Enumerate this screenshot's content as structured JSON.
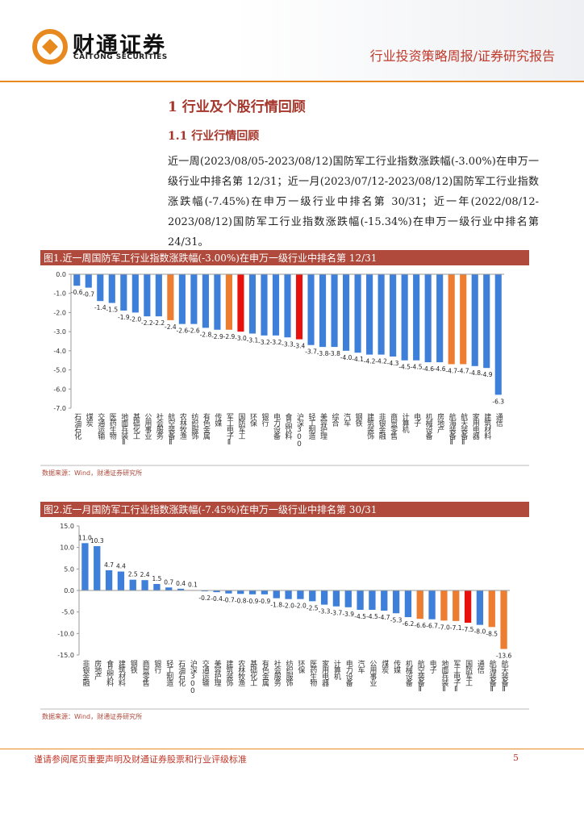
{
  "header": {
    "logo": "财通证券",
    "logo_en": "CAITONG SECURITIES",
    "report_type": "行业投资策略周报/证券研究报告"
  },
  "section": {
    "title": "1 行业及个股行情回顾",
    "subtitle": "1.1 行业行情回顾",
    "paragraph": "近一周(2023/08/05-2023/08/12)国防军工行业指数涨跌幅(-3.00%)在申万一级行业中排名第 12/31；近一月(2023/07/12-2023/08/12)国防军工行业指数涨跌幅(-7.45%)在申万一级行业中排名第 30/31；近一年(2022/08/12-2023/08/12)国防军工行业指数涨跌幅(-15.34%)在申万一级行业中排名第 24/31。"
  },
  "chart_data": [
    {
      "type": "bar",
      "title": "图1.近一周国防军工行业指数涨跌幅(-3.00%)在申万一级行业中排名第 12/31",
      "source": "数据来源：Wind，财通证券研究所",
      "categories": [
        "石油石化",
        "煤炭",
        "交通运输",
        "医药生物",
        "地面兵装Ⅱ",
        "基础化工",
        "公用事业",
        "社会服务",
        "航空装备Ⅱ",
        "农林牧渔",
        "纺织服饰",
        "有色金属",
        "传媒",
        "军工电子Ⅱ",
        "国防军工",
        "环保",
        "银行",
        "电力设备",
        "食品饮料",
        "沪深300",
        "轻工制造",
        "美容护理",
        "综合",
        "汽车",
        "钢铁",
        "建筑装饰",
        "非银金融",
        "商贸零售",
        "计算机",
        "电子",
        "机械设备",
        "房地产",
        "航海装备Ⅱ",
        "航天装备Ⅱ",
        "家用电器",
        "建筑材料",
        "通信"
      ],
      "values": [
        -0.6,
        -0.7,
        -1.4,
        -1.5,
        -1.9,
        -2.0,
        -2.2,
        -2.2,
        -2.4,
        -2.6,
        -2.6,
        -2.8,
        -2.9,
        -2.9,
        -3.0,
        -3.1,
        -3.2,
        -3.2,
        -3.3,
        -3.4,
        -3.7,
        -3.8,
        -3.8,
        -4.0,
        -4.1,
        -4.2,
        -4.2,
        -4.3,
        -4.5,
        -4.5,
        -4.6,
        -4.6,
        -4.7,
        -4.7,
        -4.8,
        -4.9,
        -6.3
      ],
      "value_labels": [
        "-0.6",
        "-0.7",
        "-1.4",
        "-1.5",
        "-1.9",
        "-2.0",
        "-2.2",
        "-2.2",
        "-2.4",
        "-2.6",
        "-2.6",
        "-2.8",
        "-2.9",
        "-2.9",
        "-3.0",
        "-3.1",
        "-3.2",
        "-3.2",
        "-3.3",
        "-3.4",
        "-3.7",
        "-3.8",
        "-3.8",
        "-4.0",
        "-4.1",
        "-4.2",
        "-4.2",
        "-4.3",
        "-4.5",
        "-4.5",
        "-4.6",
        "-4.6",
        "-4.7",
        "-4.7",
        "-4.8",
        "-4.9",
        "-6.3"
      ],
      "colors": [
        "#3d7fd9",
        "#3d7fd9",
        "#3d7fd9",
        "#3d7fd9",
        "#3d7fd9",
        "#3d7fd9",
        "#3d7fd9",
        "#3d7fd9",
        "#ed7d31",
        "#3d7fd9",
        "#3d7fd9",
        "#3d7fd9",
        "#3d7fd9",
        "#ed7d31",
        "#e8120c",
        "#3d7fd9",
        "#3d7fd9",
        "#3d7fd9",
        "#3d7fd9",
        "#e8120c",
        "#3d7fd9",
        "#3d7fd9",
        "#3d7fd9",
        "#3d7fd9",
        "#3d7fd9",
        "#3d7fd9",
        "#3d7fd9",
        "#3d7fd9",
        "#3d7fd9",
        "#3d7fd9",
        "#3d7fd9",
        "#3d7fd9",
        "#ed7d31",
        "#ed7d31",
        "#3d7fd9",
        "#3d7fd9",
        "#3d7fd9"
      ],
      "ylim": [
        -7,
        0
      ],
      "yticks": [
        {
          "value": -7,
          "label": "-7.0"
        },
        {
          "value": -6,
          "label": "-6.0"
        },
        {
          "value": -5,
          "label": "-5.0"
        },
        {
          "value": -4,
          "label": "-4.0"
        },
        {
          "value": -3,
          "label": "-3.0"
        },
        {
          "value": -2,
          "label": "-2.0"
        },
        {
          "value": -1,
          "label": "-1.0"
        },
        {
          "value": 0,
          "label": "0.0"
        }
      ]
    },
    {
      "type": "bar",
      "title": "图2.近一月国防军工行业指数涨跌幅(-7.45%)在申万一级行业中排名第 30/31",
      "source": "数据来源：Wind，财通证券研究所",
      "categories": [
        "非银金融",
        "房地产",
        "食品饮料",
        "建筑材料",
        "钢铁",
        "商贸零售",
        "银行",
        "轻工制造",
        "石油石化",
        "沪深300",
        "交通运输",
        "美容护理",
        "建筑装饰",
        "农林牧渔",
        "基础化工",
        "有色金属",
        "社会服务",
        "纺织服饰",
        "环保",
        "医药生物",
        "家用电器",
        "计算机",
        "电力设备",
        "汽车",
        "公用事业",
        "煤炭",
        "传媒",
        "机械设备",
        "航空装备Ⅱ",
        "电子",
        "地面兵装Ⅱ",
        "军工电子Ⅱ",
        "国防军工",
        "通信",
        "航海装备Ⅱ",
        "航天装备Ⅱ"
      ],
      "values": [
        11.0,
        10.3,
        4.7,
        4.4,
        2.5,
        2.4,
        1.5,
        0.7,
        0.4,
        0.1,
        -0.2,
        -0.4,
        -0.7,
        -0.8,
        -0.9,
        -0.9,
        -1.8,
        -2.0,
        -2.0,
        -2.5,
        -3.3,
        -3.7,
        -3.9,
        -4.5,
        -4.5,
        -4.7,
        -5.3,
        -6.2,
        -6.6,
        -6.7,
        -7.0,
        -7.1,
        -7.5,
        -8.0,
        -8.5,
        -13.6
      ],
      "value_labels": [
        "11.0",
        "10.3",
        "4.7",
        "4.4",
        "2.5",
        "2.4",
        "1.5",
        "0.7",
        "0.4",
        "0.1",
        "-0.2",
        "-0.4",
        "-0.7",
        "-0.8",
        "-0.9",
        "-0.9",
        "-1.8",
        "-2.0",
        "-2.0",
        "-2.5",
        "-3.3",
        "-3.7",
        "-3.9",
        "-4.5",
        "-4.5",
        "-4.7",
        "-5.3",
        "-6.2",
        "-6.6",
        "-6.7",
        "-7.0",
        "-7.1",
        "-7.5",
        "-8.0",
        "-8.5",
        "-13.6"
      ],
      "colors": [
        "#3d7fd9",
        "#3d7fd9",
        "#3d7fd9",
        "#3d7fd9",
        "#3d7fd9",
        "#3d7fd9",
        "#3d7fd9",
        "#3d7fd9",
        "#3d7fd9",
        "#e8120c",
        "#3d7fd9",
        "#3d7fd9",
        "#3d7fd9",
        "#3d7fd9",
        "#3d7fd9",
        "#3d7fd9",
        "#3d7fd9",
        "#3d7fd9",
        "#3d7fd9",
        "#3d7fd9",
        "#3d7fd9",
        "#3d7fd9",
        "#3d7fd9",
        "#3d7fd9",
        "#3d7fd9",
        "#3d7fd9",
        "#3d7fd9",
        "#3d7fd9",
        "#ed7d31",
        "#3d7fd9",
        "#ed7d31",
        "#ed7d31",
        "#e8120c",
        "#3d7fd9",
        "#ed7d31",
        "#ed7d31"
      ],
      "ylim": [
        -15,
        15
      ],
      "yticks": [
        {
          "value": -15,
          "label": "-15.0"
        },
        {
          "value": -10,
          "label": "-10.0"
        },
        {
          "value": -5,
          "label": "-5.0"
        },
        {
          "value": 0,
          "label": "0.0"
        },
        {
          "value": 5,
          "label": "5.0"
        },
        {
          "value": 10,
          "label": "10.0"
        },
        {
          "value": 15,
          "label": "15.0"
        }
      ]
    }
  ],
  "footer": {
    "disclaimer": "谨请参阅尾页重要声明及财通证券股票和行业评级标准",
    "page": "5"
  }
}
